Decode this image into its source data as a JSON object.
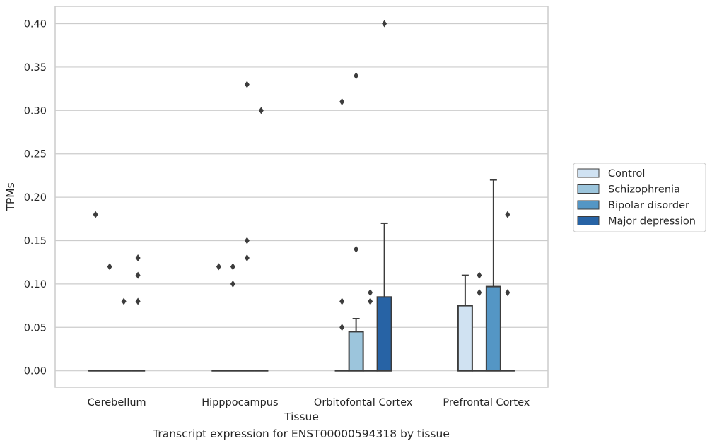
{
  "caption": "Transcript expression for ENST00000594318 by tissue",
  "colors": {
    "Control": "#d0e2f2",
    "Schizophrenia": "#9cc5dc",
    "Bipolar disorder": "#5496c5",
    "Major depression": "#2763a5",
    "grid": "#cccccc",
    "frame": "#cccccc",
    "line": "#3c3c3c"
  },
  "chart_data": {
    "type": "box",
    "xlabel": "Tissue",
    "ylabel": "TPMs",
    "ylim": [
      -0.019,
      0.42
    ],
    "yticks": [
      0.0,
      0.05,
      0.1,
      0.15,
      0.2,
      0.25,
      0.3,
      0.35,
      0.4
    ],
    "ytick_labels": [
      "0.00",
      "0.05",
      "0.10",
      "0.15",
      "0.20",
      "0.25",
      "0.30",
      "0.35",
      "0.40"
    ],
    "grid": true,
    "legend_position": "right",
    "categories": [
      "Cerebellum",
      "Hipppocampus",
      "Orbitofontal Cortex",
      "Prefrontal Cortex"
    ],
    "series": [
      {
        "name": "Control",
        "boxes": [
          {
            "q1": 0,
            "median": 0,
            "q3": 0,
            "whisker_low": 0,
            "whisker_high": 0,
            "outliers": [
              0.18
            ]
          },
          {
            "q1": 0,
            "median": 0,
            "q3": 0,
            "whisker_low": 0,
            "whisker_high": 0,
            "outliers": [
              0.12
            ]
          },
          {
            "q1": 0,
            "median": 0,
            "q3": 0,
            "whisker_low": 0,
            "whisker_high": 0,
            "outliers": [
              0.31,
              0.08,
              0.05
            ]
          },
          {
            "q1": 0,
            "median": 0,
            "q3": 0.075,
            "whisker_low": 0,
            "whisker_high": 0.11,
            "outliers": []
          }
        ]
      },
      {
        "name": "Schizophrenia",
        "boxes": [
          {
            "q1": 0,
            "median": 0,
            "q3": 0,
            "whisker_low": 0,
            "whisker_high": 0,
            "outliers": [
              0.12
            ]
          },
          {
            "q1": 0,
            "median": 0,
            "q3": 0,
            "whisker_low": 0,
            "whisker_high": 0,
            "outliers": [
              0.12,
              0.1
            ]
          },
          {
            "q1": 0,
            "median": 0,
            "q3": 0.045,
            "whisker_low": 0,
            "whisker_high": 0.06,
            "outliers": [
              0.34,
              0.14
            ]
          },
          {
            "q1": 0,
            "median": 0,
            "q3": 0,
            "whisker_low": 0,
            "whisker_high": 0,
            "outliers": [
              0.11,
              0.09
            ]
          }
        ]
      },
      {
        "name": "Bipolar disorder",
        "boxes": [
          {
            "q1": 0,
            "median": 0,
            "q3": 0,
            "whisker_low": 0,
            "whisker_high": 0,
            "outliers": [
              0.08
            ]
          },
          {
            "q1": 0,
            "median": 0,
            "q3": 0,
            "whisker_low": 0,
            "whisker_high": 0,
            "outliers": [
              0.33,
              0.15,
              0.13
            ]
          },
          {
            "q1": 0,
            "median": 0,
            "q3": 0,
            "whisker_low": 0,
            "whisker_high": 0,
            "outliers": [
              0.09,
              0.08
            ]
          },
          {
            "q1": 0,
            "median": 0,
            "q3": 0.097,
            "whisker_low": 0,
            "whisker_high": 0.22,
            "outliers": []
          }
        ]
      },
      {
        "name": "Major depression",
        "boxes": [
          {
            "q1": 0,
            "median": 0,
            "q3": 0,
            "whisker_low": 0,
            "whisker_high": 0,
            "outliers": [
              0.13,
              0.11,
              0.08
            ]
          },
          {
            "q1": 0,
            "median": 0,
            "q3": 0,
            "whisker_low": 0,
            "whisker_high": 0,
            "outliers": [
              0.3
            ]
          },
          {
            "q1": 0,
            "median": 0,
            "q3": 0.085,
            "whisker_low": 0,
            "whisker_high": 0.17,
            "outliers": [
              0.4
            ]
          },
          {
            "q1": 0,
            "median": 0,
            "q3": 0,
            "whisker_low": 0,
            "whisker_high": 0,
            "outliers": [
              0.18,
              0.09
            ]
          }
        ]
      }
    ]
  }
}
